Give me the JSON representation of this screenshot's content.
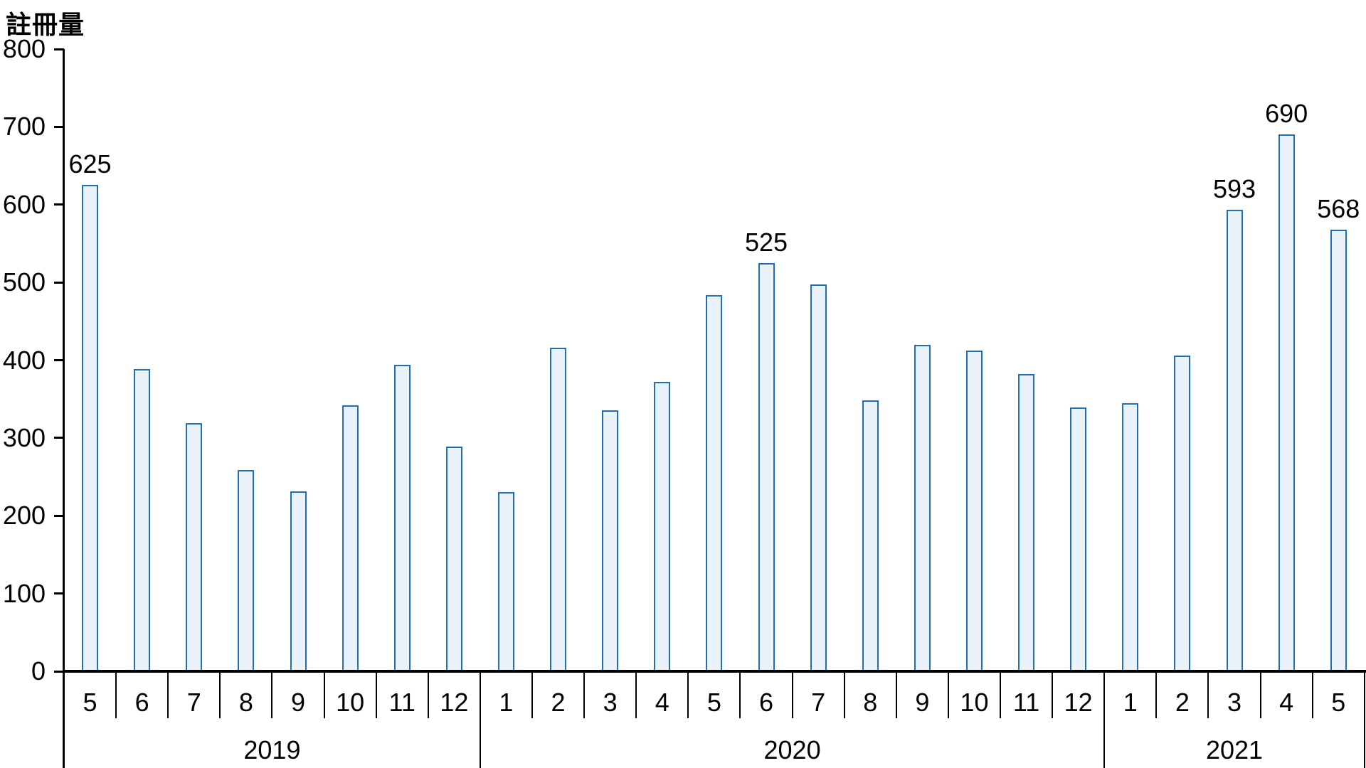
{
  "chart_data": {
    "type": "bar",
    "title": "註冊量",
    "ylabel": "註冊量",
    "xlabel": "",
    "ylim": [
      0,
      800
    ],
    "ytick_step": 100,
    "ytick_labels": [
      "0",
      "100",
      "200",
      "300",
      "400",
      "500",
      "600",
      "700",
      "800"
    ],
    "grid": "off",
    "legend": "none",
    "groups": [
      {
        "year": "2019",
        "months": [
          "5",
          "6",
          "7",
          "8",
          "9",
          "10",
          "11",
          "12"
        ],
        "values": [
          625,
          389,
          319,
          259,
          231,
          342,
          394,
          289
        ]
      },
      {
        "year": "2020",
        "months": [
          "1",
          "2",
          "3",
          "4",
          "5",
          "6",
          "7",
          "8",
          "9",
          "10",
          "11",
          "12"
        ],
        "values": [
          230,
          416,
          336,
          372,
          484,
          525,
          497,
          348,
          420,
          412,
          382,
          339
        ]
      },
      {
        "year": "2021",
        "months": [
          "1",
          "2",
          "3",
          "4",
          "5"
        ],
        "values": [
          345,
          406,
          593,
          690,
          568
        ]
      }
    ],
    "data_labels": [
      {
        "year": "2019",
        "month": "5",
        "text": "625"
      },
      {
        "year": "2020",
        "month": "6",
        "text": "525"
      },
      {
        "year": "2021",
        "month": "3",
        "text": "593"
      },
      {
        "year": "2021",
        "month": "4",
        "text": "690"
      },
      {
        "year": "2021",
        "month": "5",
        "text": "568"
      }
    ],
    "colors": {
      "bar_fill": "#E9F2FB",
      "bar_border": "#1F6FB2",
      "axis": "#000000",
      "text": "#000000",
      "background": "#FFFFFF"
    }
  }
}
